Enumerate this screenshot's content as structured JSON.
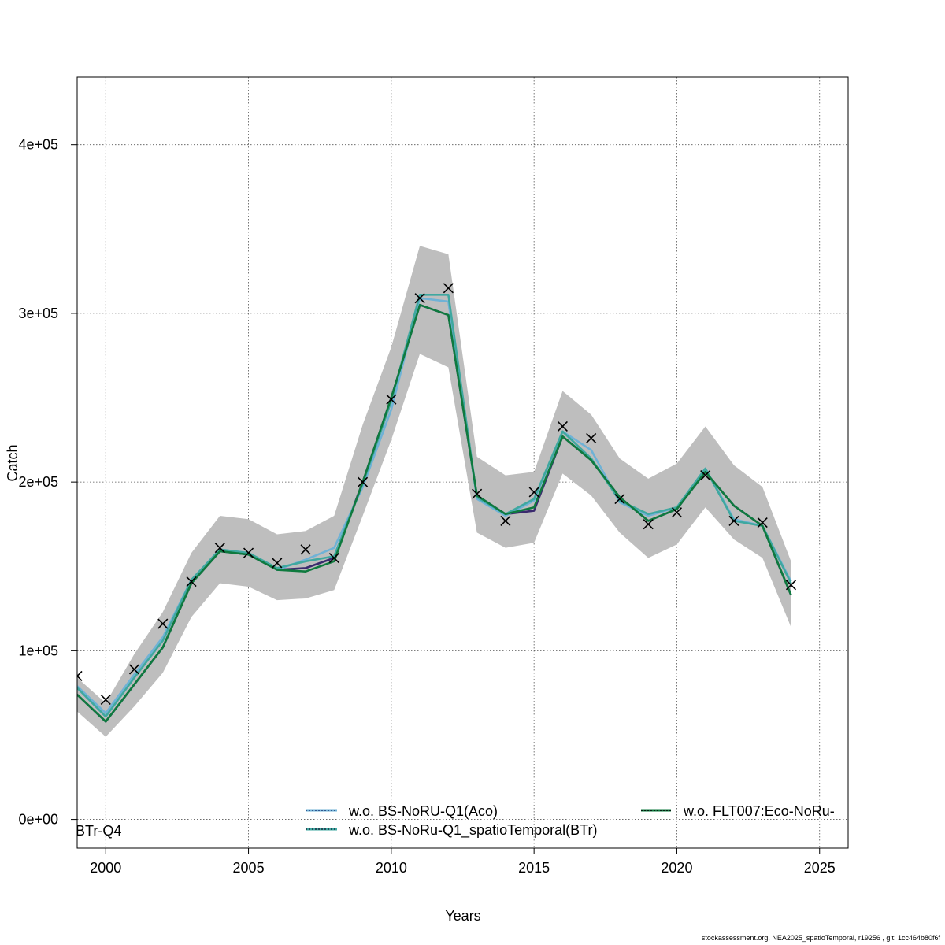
{
  "chart_data": {
    "type": "line",
    "title": "",
    "xlabel": "Years",
    "ylabel": "Catch",
    "xlim": [
      1999,
      2026
    ],
    "ylim": [
      -17000,
      440000
    ],
    "x_ticks": [
      2000,
      2005,
      2010,
      2015,
      2020,
      2025
    ],
    "x_tick_labels": [
      "2000",
      "2005",
      "2010",
      "2015",
      "2020",
      "2025"
    ],
    "y_ticks": [
      0,
      100000,
      200000,
      300000,
      400000
    ],
    "y_tick_labels": [
      "0e+00",
      "1e+05",
      "2e+05",
      "3e+05",
      "4e+05"
    ],
    "grid": true,
    "years": [
      1999,
      2000,
      2001,
      2002,
      2003,
      2004,
      2005,
      2006,
      2007,
      2008,
      2009,
      2010,
      2011,
      2012,
      2013,
      2014,
      2015,
      2016,
      2017,
      2018,
      2019,
      2020,
      2021,
      2022,
      2023,
      2024
    ],
    "confidence_band": {
      "color": "#bebebe",
      "lower": [
        64000,
        49000,
        67000,
        87000,
        120000,
        140000,
        138000,
        130000,
        131000,
        136000,
        180000,
        225000,
        276000,
        268000,
        170000,
        161000,
        164000,
        205000,
        192000,
        170000,
        155000,
        163000,
        185000,
        166000,
        155000,
        114000
      ],
      "upper": [
        84000,
        69000,
        98000,
        123000,
        158000,
        180000,
        178000,
        169000,
        171000,
        180000,
        234000,
        280000,
        340000,
        335000,
        215000,
        204000,
        206000,
        254000,
        240000,
        214000,
        202000,
        211000,
        233000,
        210000,
        197000,
        153000
      ]
    },
    "series": [
      {
        "name": "",
        "color": "#3a2a6e",
        "values": [
          74000,
          58000,
          80000,
          102000,
          140000,
          159000,
          157000,
          148000,
          149000,
          155000,
          200000,
          250000,
          305000,
          299000,
          192000,
          181000,
          183000,
          227000,
          213000,
          191000,
          177000,
          184000,
          206000,
          186000,
          174000,
          133000
        ]
      },
      {
        "name": "w.o. BS-NoRU-Q1(Aco)",
        "color": "#6fb2d6",
        "values": [
          79000,
          63000,
          86000,
          108000,
          142000,
          160000,
          158000,
          148000,
          154000,
          161000,
          197000,
          243000,
          309000,
          307000,
          190000,
          180000,
          189000,
          230000,
          219000,
          188000,
          180000,
          185000,
          208000,
          178000,
          174000,
          141000
        ]
      },
      {
        "name": "w.o. BS-NoRu-Q1_spatioTemporal(BTr)",
        "color": "#3fa8a0",
        "values": [
          78000,
          61000,
          84000,
          106000,
          142000,
          160000,
          158000,
          149000,
          153000,
          156000,
          199000,
          248000,
          311000,
          311000,
          191000,
          181000,
          190000,
          230000,
          214000,
          189000,
          181000,
          185000,
          208000,
          177000,
          174000,
          140000
        ]
      },
      {
        "name": "w.o. FLT007:Eco-NoRu-",
        "color": "#0e7a3e",
        "values": [
          74000,
          58000,
          80000,
          102000,
          140000,
          159000,
          157000,
          148000,
          147000,
          153000,
          200000,
          250000,
          305000,
          299000,
          192000,
          181000,
          185000,
          227000,
          213000,
          191000,
          177000,
          184000,
          206000,
          186000,
          174000,
          133000
        ]
      }
    ],
    "observations": {
      "marker": "x",
      "values": [
        85000,
        71000,
        89000,
        116000,
        141000,
        161000,
        158000,
        152000,
        160000,
        155000,
        200000,
        249000,
        309000,
        315000,
        193000,
        177000,
        194000,
        233000,
        226000,
        190000,
        175000,
        182000,
        204000,
        177000,
        176000,
        139000
      ]
    },
    "legend": {
      "placement": "bottom",
      "entries": [
        {
          "label": "w.o. BS-NoRU-Q1(Aco)",
          "color": "#6fb2d6",
          "dash_color": "#1b3a7a"
        },
        {
          "label": "w.o. BS-NoRu-Q1_spatioTemporal(BTr)",
          "color": "#3fa8a0",
          "dash_color": "#1a2a40"
        },
        {
          "label": "w.o. FLT007:Eco-NoRu-",
          "color": "#0e7a3e",
          "dash_color": "#000000"
        }
      ],
      "overflow_text": "BTr-Q4"
    }
  },
  "footer": "stockassessment.org, NEA2025_spatioTemporal, r19256 , git: 1cc464b80f6f"
}
